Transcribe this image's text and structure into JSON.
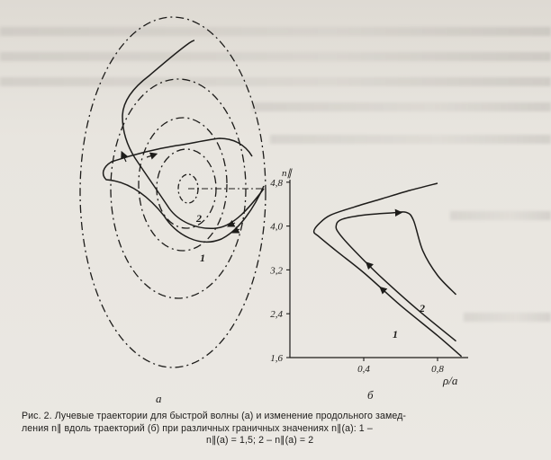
{
  "figure": {
    "panel_a": {
      "label": "а",
      "curve_labels": [
        "2",
        "1"
      ]
    },
    "panel_b": {
      "label": "б",
      "y_axis_label": "n∥",
      "x_axis_label": "ρ/a",
      "curve_labels": [
        "2",
        "1"
      ]
    }
  },
  "chart_data": {
    "type": "line",
    "title": "",
    "xlabel": "ρ/a",
    "ylabel": "n∥",
    "xlim": [
      0,
      0.95
    ],
    "ylim": [
      1.6,
      4.8
    ],
    "x_ticks": [
      "0,4",
      "0,8"
    ],
    "y_ticks": [
      "1,6",
      "2,4",
      "3,2",
      "4,0",
      "4,8"
    ],
    "series": [
      {
        "name": "1",
        "x": [
          0.93,
          0.8,
          0.6,
          0.4,
          0.25,
          0.16,
          0.13,
          0.16,
          0.22,
          0.35,
          0.5,
          0.65,
          0.8
        ],
        "y": [
          1.62,
          2.0,
          2.55,
          3.15,
          3.55,
          3.8,
          3.9,
          4.05,
          4.2,
          4.35,
          4.5,
          4.65,
          4.78
        ]
      },
      {
        "name": "2",
        "x": [
          0.9,
          0.7,
          0.5,
          0.35,
          0.27,
          0.25,
          0.28,
          0.4,
          0.55,
          0.63,
          0.67,
          0.72,
          0.8,
          0.9
        ],
        "y": [
          1.9,
          2.45,
          3.05,
          3.55,
          3.85,
          4.0,
          4.12,
          4.2,
          4.24,
          4.25,
          4.1,
          3.55,
          3.1,
          2.75
        ]
      }
    ]
  },
  "caption": {
    "line1": "Рис. 2. Лучевые траектории для быстрой волны (а) и изменение продольного замед-",
    "line2": "ления n∥ вдоль траекторий (б) при различных граничных значениях n∥(a): 1 –",
    "line3": "n∥(a) = 1,5; 2 – n∥(a) = 2"
  }
}
